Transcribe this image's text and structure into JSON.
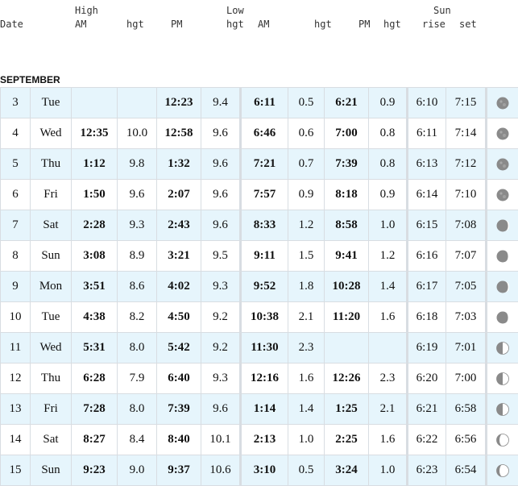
{
  "header": {
    "date": "Date",
    "high": "High",
    "low": "Low",
    "sun": "Sun",
    "am": "AM",
    "pm": "PM",
    "hgt": "hgt",
    "rise": "rise",
    "set": "set"
  },
  "month": "SEPTEMBER",
  "rows": [
    {
      "date": "3",
      "day": "Tue",
      "hi_am": "",
      "hi_am_h": "",
      "hi_pm": "12:23",
      "hi_pm_h": "9.4",
      "lo_am": "6:11",
      "lo_am_h": "0.5",
      "lo_pm": "6:21",
      "lo_pm_h": "0.9",
      "rise": "6:10",
      "set": "7:15",
      "moon": "full-moon-icon"
    },
    {
      "date": "4",
      "day": "Wed",
      "hi_am": "12:35",
      "hi_am_h": "10.0",
      "hi_pm": "12:58",
      "hi_pm_h": "9.6",
      "lo_am": "6:46",
      "lo_am_h": "0.6",
      "lo_pm": "7:00",
      "lo_pm_h": "0.8",
      "rise": "6:11",
      "set": "7:14",
      "moon": "full-moon-icon"
    },
    {
      "date": "5",
      "day": "Thu",
      "hi_am": "1:12",
      "hi_am_h": "9.8",
      "hi_pm": "1:32",
      "hi_pm_h": "9.6",
      "lo_am": "7:21",
      "lo_am_h": "0.7",
      "lo_pm": "7:39",
      "lo_pm_h": "0.8",
      "rise": "6:13",
      "set": "7:12",
      "moon": "full-moon-icon"
    },
    {
      "date": "6",
      "day": "Fri",
      "hi_am": "1:50",
      "hi_am_h": "9.6",
      "hi_pm": "2:07",
      "hi_pm_h": "9.6",
      "lo_am": "7:57",
      "lo_am_h": "0.9",
      "lo_pm": "8:18",
      "lo_pm_h": "0.9",
      "rise": "6:14",
      "set": "7:10",
      "moon": "full-moon-icon"
    },
    {
      "date": "7",
      "day": "Sat",
      "hi_am": "2:28",
      "hi_am_h": "9.3",
      "hi_pm": "2:43",
      "hi_pm_h": "9.6",
      "lo_am": "8:33",
      "lo_am_h": "1.2",
      "lo_pm": "8:58",
      "lo_pm_h": "1.0",
      "rise": "6:15",
      "set": "7:08",
      "moon": "waning-gibbous-icon"
    },
    {
      "date": "8",
      "day": "Sun",
      "hi_am": "3:08",
      "hi_am_h": "8.9",
      "hi_pm": "3:21",
      "hi_pm_h": "9.5",
      "lo_am": "9:11",
      "lo_am_h": "1.5",
      "lo_pm": "9:41",
      "lo_pm_h": "1.2",
      "rise": "6:16",
      "set": "7:07",
      "moon": "waning-gibbous-icon"
    },
    {
      "date": "9",
      "day": "Mon",
      "hi_am": "3:51",
      "hi_am_h": "8.6",
      "hi_pm": "4:02",
      "hi_pm_h": "9.3",
      "lo_am": "9:52",
      "lo_am_h": "1.8",
      "lo_pm": "10:28",
      "lo_pm_h": "1.4",
      "rise": "6:17",
      "set": "7:05",
      "moon": "waning-gibbous-icon"
    },
    {
      "date": "10",
      "day": "Tue",
      "hi_am": "4:38",
      "hi_am_h": "8.2",
      "hi_pm": "4:50",
      "hi_pm_h": "9.2",
      "lo_am": "10:38",
      "lo_am_h": "2.1",
      "lo_pm": "11:20",
      "lo_pm_h": "1.6",
      "rise": "6:18",
      "set": "7:03",
      "moon": "waning-gibbous-icon"
    },
    {
      "date": "11",
      "day": "Wed",
      "hi_am": "5:31",
      "hi_am_h": "8.0",
      "hi_pm": "5:42",
      "hi_pm_h": "9.2",
      "lo_am": "11:30",
      "lo_am_h": "2.3",
      "lo_pm": "",
      "lo_pm_h": "",
      "rise": "6:19",
      "set": "7:01",
      "moon": "last-quarter-icon"
    },
    {
      "date": "12",
      "day": "Thu",
      "hi_am": "6:28",
      "hi_am_h": "7.9",
      "hi_pm": "6:40",
      "hi_pm_h": "9.3",
      "lo_am": "12:16",
      "lo_am_h": "1.6",
      "lo_pm": "12:26",
      "lo_pm_h": "2.3",
      "rise": "6:20",
      "set": "7:00",
      "moon": "last-quarter-icon"
    },
    {
      "date": "13",
      "day": "Fri",
      "hi_am": "7:28",
      "hi_am_h": "8.0",
      "hi_pm": "7:39",
      "hi_pm_h": "9.6",
      "lo_am": "1:14",
      "lo_am_h": "1.4",
      "lo_pm": "1:25",
      "lo_pm_h": "2.1",
      "rise": "6:21",
      "set": "6:58",
      "moon": "last-quarter-icon"
    },
    {
      "date": "14",
      "day": "Sat",
      "hi_am": "8:27",
      "hi_am_h": "8.4",
      "hi_pm": "8:40",
      "hi_pm_h": "10.1",
      "lo_am": "2:13",
      "lo_am_h": "1.0",
      "lo_pm": "2:25",
      "lo_pm_h": "1.6",
      "rise": "6:22",
      "set": "6:56",
      "moon": "waning-crescent-icon"
    },
    {
      "date": "15",
      "day": "Sun",
      "hi_am": "9:23",
      "hi_am_h": "9.0",
      "hi_pm": "9:37",
      "hi_pm_h": "10.6",
      "lo_am": "3:10",
      "lo_am_h": "0.5",
      "lo_pm": "3:24",
      "lo_pm_h": "1.0",
      "rise": "6:23",
      "set": "6:54",
      "moon": "waning-crescent-icon"
    }
  ]
}
